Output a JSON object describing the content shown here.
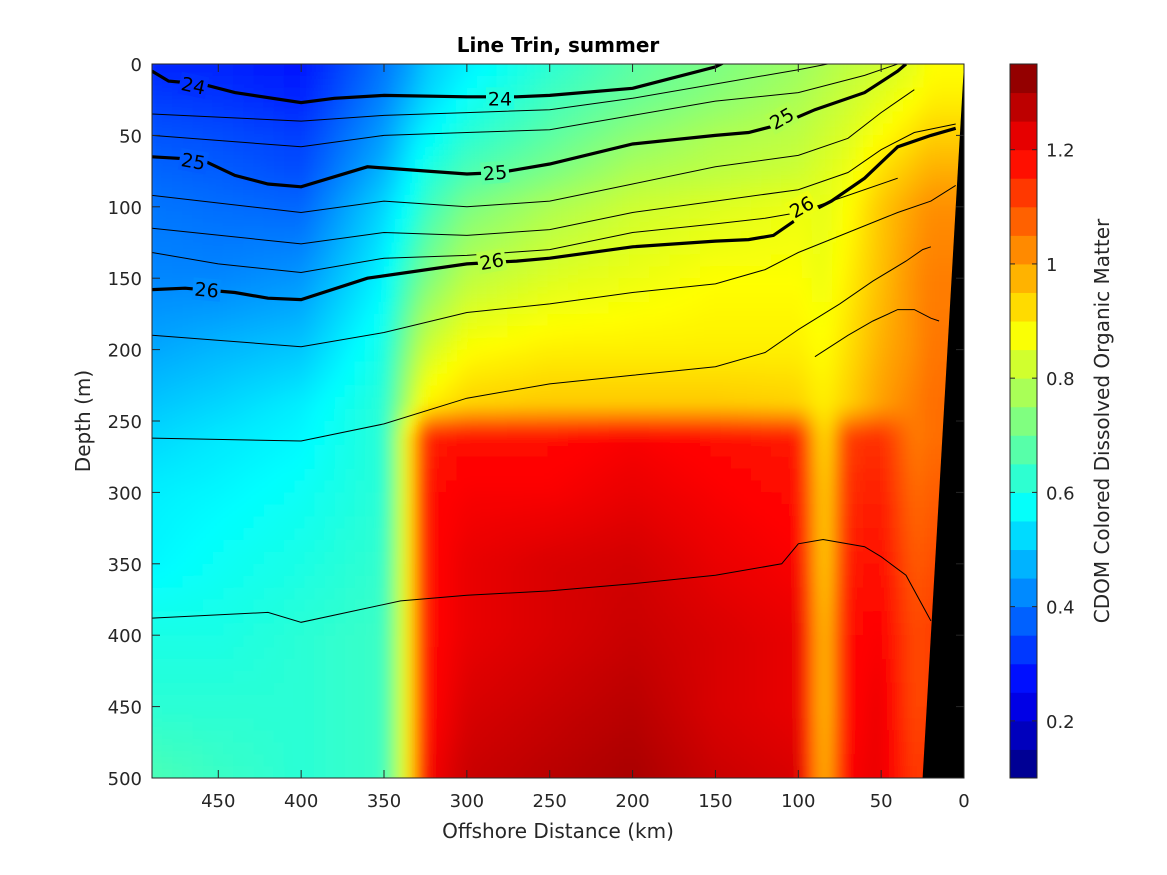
{
  "chart_data": {
    "type": "heatmap",
    "title": "Line Trin, summer",
    "xlabel": "Offshore Distance (km)",
    "ylabel": "Depth (m)",
    "colorbar_label": "CDOM Colored Dissolved Organic Matter",
    "xlim": [
      490,
      0
    ],
    "ylim": [
      500,
      0
    ],
    "x_reversed": true,
    "y_reversed": true,
    "x_ticks": [
      "450",
      "400",
      "350",
      "300",
      "250",
      "200",
      "150",
      "100",
      "50",
      "0"
    ],
    "x_tick_values": [
      450,
      400,
      350,
      300,
      250,
      200,
      150,
      100,
      50,
      0
    ],
    "y_ticks": [
      "0",
      "50",
      "100",
      "150",
      "200",
      "250",
      "300",
      "350",
      "400",
      "450",
      "500"
    ],
    "y_tick_values": [
      0,
      50,
      100,
      150,
      200,
      250,
      300,
      350,
      400,
      450,
      500
    ],
    "colorbar_range": [
      0.1,
      1.35
    ],
    "colorbar_ticks": [
      "0.2",
      "0.4",
      "0.6",
      "0.8",
      "1",
      "1.2"
    ],
    "colorbar_tick_values": [
      0.2,
      0.4,
      0.6,
      0.8,
      1.0,
      1.2
    ],
    "colormap": [
      "#000080",
      "#0000ff",
      "#0080ff",
      "#00ffff",
      "#80ff80",
      "#ffff00",
      "#ff8000",
      "#ff0000",
      "#800000"
    ],
    "cdom_grid": {
      "x": [
        490,
        450,
        400,
        350,
        335,
        325,
        300,
        250,
        200,
        150,
        100,
        85,
        70,
        50,
        30,
        20
      ],
      "depth": [
        0,
        25,
        50,
        75,
        100,
        150,
        200,
        240,
        260,
        300,
        350,
        400,
        450,
        500
      ],
      "values": [
        [
          0.3,
          0.3,
          0.28,
          0.4,
          0.45,
          0.5,
          0.55,
          0.62,
          0.68,
          0.72,
          0.76,
          0.78,
          0.8,
          0.82,
          0.85,
          0.88
        ],
        [
          0.33,
          0.32,
          0.3,
          0.42,
          0.48,
          0.52,
          0.58,
          0.65,
          0.7,
          0.74,
          0.78,
          0.8,
          0.82,
          0.85,
          0.88,
          0.9
        ],
        [
          0.36,
          0.35,
          0.33,
          0.45,
          0.52,
          0.56,
          0.62,
          0.68,
          0.74,
          0.78,
          0.8,
          0.82,
          0.84,
          0.88,
          0.92,
          0.94
        ],
        [
          0.38,
          0.37,
          0.35,
          0.48,
          0.55,
          0.6,
          0.66,
          0.72,
          0.78,
          0.8,
          0.82,
          0.84,
          0.86,
          0.92,
          0.96,
          0.98
        ],
        [
          0.4,
          0.39,
          0.38,
          0.52,
          0.58,
          0.64,
          0.72,
          0.78,
          0.82,
          0.84,
          0.86,
          0.85,
          0.88,
          0.95,
          1.0,
          1.02
        ],
        [
          0.42,
          0.42,
          0.44,
          0.56,
          0.66,
          0.72,
          0.8,
          0.84,
          0.86,
          0.88,
          0.88,
          0.86,
          0.9,
          0.96,
          1.02,
          1.04
        ],
        [
          0.46,
          0.48,
          0.5,
          0.6,
          0.74,
          0.82,
          0.88,
          0.9,
          0.9,
          0.9,
          0.9,
          0.88,
          0.92,
          0.98,
          1.02,
          1.05
        ],
        [
          0.5,
          0.52,
          0.55,
          0.62,
          0.8,
          0.9,
          0.94,
          0.95,
          0.95,
          0.95,
          0.94,
          0.9,
          0.94,
          1.0,
          1.04,
          1.06
        ],
        [
          0.52,
          0.54,
          0.56,
          0.62,
          0.9,
          1.15,
          1.18,
          1.18,
          1.2,
          1.18,
          1.16,
          0.9,
          1.12,
          1.14,
          1.04,
          1.06
        ],
        [
          0.55,
          0.56,
          0.58,
          0.62,
          0.9,
          1.18,
          1.2,
          1.2,
          1.22,
          1.2,
          1.18,
          0.92,
          1.14,
          1.16,
          1.06,
          1.08
        ],
        [
          0.56,
          0.58,
          0.6,
          0.63,
          0.9,
          1.18,
          1.22,
          1.24,
          1.25,
          1.22,
          1.2,
          0.92,
          1.16,
          1.18,
          1.08,
          1.1
        ],
        [
          0.6,
          0.6,
          0.62,
          0.64,
          0.9,
          1.18,
          1.22,
          1.24,
          1.26,
          1.24,
          1.22,
          0.94,
          1.18,
          1.2,
          1.1,
          1.12
        ],
        [
          0.62,
          0.62,
          0.62,
          0.64,
          0.9,
          1.18,
          1.24,
          1.26,
          1.28,
          1.24,
          1.22,
          0.94,
          1.18,
          1.22,
          1.1,
          1.12
        ],
        [
          0.66,
          0.64,
          0.62,
          0.64,
          0.9,
          1.2,
          1.26,
          1.28,
          1.3,
          1.26,
          1.24,
          0.95,
          1.2,
          1.22,
          1.12,
          1.14
        ]
      ]
    },
    "density_contours": {
      "bold_levels": [
        {
          "level": "24",
          "x": [
            490,
            480,
            460,
            440,
            400,
            380,
            350,
            300,
            270,
            250,
            200,
            150,
            130,
            110,
            100,
            80,
            50,
            30,
            25
          ],
          "depth": [
            5,
            12,
            14,
            20,
            27,
            24,
            22,
            23,
            23,
            22,
            17,
            2,
            -10,
            -20,
            -20,
            -20,
            -20,
            -20,
            -20
          ]
        },
        {
          "level": "25",
          "x": [
            490,
            460,
            440,
            420,
            400,
            360,
            300,
            280,
            270,
            250,
            200,
            150,
            130,
            110,
            90,
            60,
            40,
            35
          ],
          "depth": [
            65,
            67,
            78,
            84,
            86,
            72,
            77,
            76,
            74,
            70,
            56,
            50,
            48,
            42,
            32,
            20,
            5,
            0
          ]
        },
        {
          "level": "26",
          "x": [
            490,
            470,
            440,
            420,
            400,
            360,
            300,
            270,
            250,
            200,
            150,
            130,
            115,
            100,
            80,
            60,
            40,
            20,
            5
          ],
          "depth": [
            158,
            157,
            160,
            164,
            165,
            150,
            140,
            138,
            136,
            128,
            124,
            123,
            120,
            108,
            96,
            80,
            58,
            50,
            45
          ]
        }
      ],
      "thin": [
        {
          "x": [
            490,
            400,
            350,
            300,
            250,
            200,
            150,
            100,
            60,
            30,
            20
          ],
          "depth": [
            35,
            40,
            36,
            34,
            32,
            24,
            14,
            4,
            -5,
            -10,
            -10
          ]
        },
        {
          "x": [
            490,
            400,
            350,
            300,
            250,
            200,
            150,
            100,
            60,
            40,
            25
          ],
          "depth": [
            50,
            58,
            50,
            48,
            46,
            36,
            26,
            20,
            8,
            0,
            -5
          ]
        },
        {
          "x": [
            490,
            400,
            350,
            300,
            250,
            200,
            150,
            100,
            70,
            50,
            30
          ],
          "depth": [
            92,
            104,
            96,
            100,
            96,
            84,
            72,
            64,
            52,
            34,
            18
          ]
        },
        {
          "x": [
            490,
            400,
            350,
            300,
            250,
            200,
            150,
            100,
            70,
            50,
            30,
            5
          ],
          "depth": [
            115,
            126,
            118,
            120,
            116,
            104,
            96,
            88,
            76,
            60,
            48,
            42
          ]
        },
        {
          "x": [
            490,
            450,
            400,
            350,
            300,
            250,
            200,
            150,
            120,
            100,
            70,
            40
          ],
          "depth": [
            132,
            140,
            146,
            136,
            134,
            130,
            118,
            112,
            108,
            104,
            92,
            80
          ]
        },
        {
          "x": [
            490,
            400,
            350,
            300,
            250,
            200,
            150,
            120,
            100,
            70,
            40,
            20,
            5
          ],
          "depth": [
            190,
            198,
            188,
            174,
            168,
            160,
            154,
            144,
            132,
            118,
            104,
            96,
            85
          ]
        },
        {
          "x": [
            490,
            400,
            350,
            300,
            250,
            200,
            150,
            120,
            100,
            75,
            55,
            35,
            25,
            20
          ],
          "depth": [
            262,
            264,
            252,
            234,
            224,
            218,
            212,
            202,
            186,
            168,
            152,
            138,
            130,
            128
          ]
        },
        {
          "x": [
            490,
            420,
            400,
            340,
            300,
            250,
            200,
            150,
            110,
            100,
            85,
            60,
            50,
            35,
            20
          ],
          "depth": [
            388,
            384,
            391,
            376,
            372,
            369,
            364,
            358,
            350,
            336,
            333,
            338,
            345,
            358,
            390
          ]
        },
        {
          "x": [
            90,
            70,
            55,
            40,
            30,
            20,
            15
          ],
          "depth": [
            205,
            190,
            180,
            172,
            172,
            178,
            180
          ]
        }
      ],
      "inline_labels": [
        {
          "text": "24",
          "x": 465,
          "depth": 15,
          "angle": 12
        },
        {
          "text": "24",
          "x": 280,
          "depth": 24,
          "angle": 0
        },
        {
          "text": "25",
          "x": 465,
          "depth": 68,
          "angle": 10
        },
        {
          "text": "25",
          "x": 283,
          "depth": 76,
          "angle": -5
        },
        {
          "text": "25",
          "x": 110,
          "depth": 38,
          "angle": -30
        },
        {
          "text": "26",
          "x": 457,
          "depth": 158,
          "angle": 5
        },
        {
          "text": "26",
          "x": 285,
          "depth": 138,
          "angle": -10
        },
        {
          "text": "26",
          "x": 98,
          "depth": 100,
          "angle": -30
        }
      ]
    },
    "bathymetry_mask": {
      "x": [
        25,
        0,
        0
      ],
      "depth": [
        500,
        0,
        500
      ],
      "color": "#000000"
    },
    "grid": false,
    "legend": "colorbar-right"
  }
}
